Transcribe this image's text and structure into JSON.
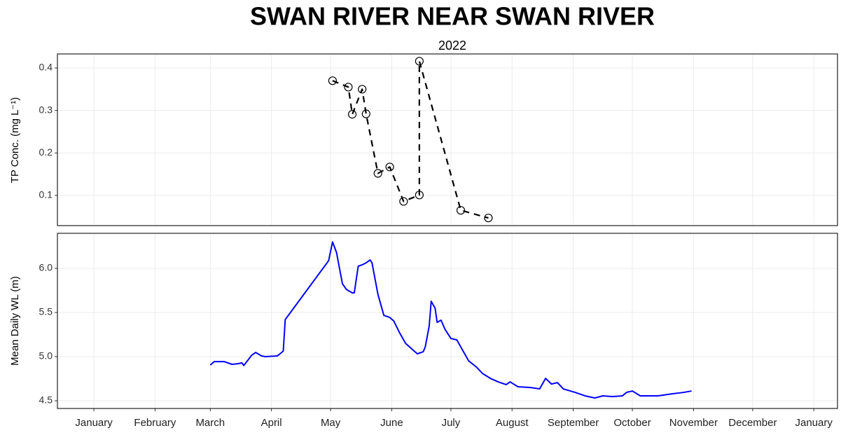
{
  "chart_data": [
    {
      "type": "line",
      "title": "SWAN RIVER NEAR SWAN RIVER",
      "subtitle": "2022",
      "y_label": "TP Conc. (mg L⁻¹)",
      "x": [
        121,
        129,
        131,
        136,
        138,
        144,
        150,
        157,
        165,
        165,
        186,
        200
      ],
      "values": [
        0.37,
        0.355,
        0.291,
        0.35,
        0.292,
        0.152,
        0.167,
        0.086,
        0.101,
        0.416,
        0.065,
        0.047
      ],
      "color": "#000000",
      "linestyle": "dashed",
      "markers": true,
      "xlim": [
        -18.5,
        377
      ],
      "ylim": [
        0.029,
        0.433
      ],
      "yticks": [
        0.1,
        0.2,
        0.3,
        0.4
      ],
      "grid": true
    },
    {
      "type": "line",
      "y_label": "Mean Daily WL (m)",
      "x": [
        59,
        61,
        66,
        70,
        73,
        75,
        76,
        80,
        82,
        85,
        87,
        93,
        96,
        97,
        119,
        121,
        123,
        126,
        128,
        131,
        132,
        134,
        136,
        138,
        140,
        141,
        144,
        147,
        150,
        152,
        155,
        158,
        162,
        164,
        167,
        168,
        170,
        171,
        173,
        174,
        176,
        178,
        181,
        184,
        187,
        190,
        194,
        197,
        201,
        205,
        209,
        211,
        215,
        221,
        226,
        229,
        232,
        235,
        238,
        244,
        249,
        254,
        258,
        263,
        268,
        270,
        273,
        277,
        286,
        293,
        299,
        303
      ],
      "values": [
        4.905,
        4.944,
        4.944,
        4.913,
        4.92,
        4.93,
        4.9,
        5.016,
        5.048,
        5.008,
        5.0,
        5.008,
        5.063,
        5.42,
        6.087,
        6.3,
        6.18,
        5.825,
        5.762,
        5.722,
        5.722,
        6.024,
        6.04,
        6.063,
        6.095,
        6.063,
        5.706,
        5.468,
        5.444,
        5.405,
        5.27,
        5.151,
        5.071,
        5.032,
        5.056,
        5.111,
        5.349,
        5.627,
        5.548,
        5.389,
        5.413,
        5.31,
        5.206,
        5.19,
        5.071,
        4.952,
        4.881,
        4.81,
        4.754,
        4.714,
        4.683,
        4.714,
        4.659,
        4.651,
        4.635,
        4.754,
        4.69,
        4.706,
        4.635,
        4.595,
        4.556,
        4.532,
        4.556,
        4.548,
        4.556,
        4.595,
        4.611,
        4.556,
        4.556,
        4.579,
        4.595,
        4.611
      ],
      "color": "#0000ff",
      "xlim": [
        -18.5,
        377
      ],
      "xticks": [
        {
          "value": 0,
          "label": "January"
        },
        {
          "value": 31,
          "label": "February"
        },
        {
          "value": 59,
          "label": "March"
        },
        {
          "value": 90,
          "label": "April"
        },
        {
          "value": 120,
          "label": "May"
        },
        {
          "value": 151,
          "label": "June"
        },
        {
          "value": 181,
          "label": "July"
        },
        {
          "value": 212,
          "label": "August"
        },
        {
          "value": 243,
          "label": "September"
        },
        {
          "value": 273,
          "label": "October"
        },
        {
          "value": 304,
          "label": "November"
        },
        {
          "value": 334,
          "label": "December"
        },
        {
          "value": 365,
          "label": "January"
        }
      ],
      "ylim": [
        4.413,
        6.397
      ],
      "yticks": [
        4.5,
        {
          "value": 5.0,
          "label": "5.0"
        },
        5.5,
        {
          "value": 6.0,
          "label": "6.0"
        }
      ],
      "grid": true
    }
  ]
}
